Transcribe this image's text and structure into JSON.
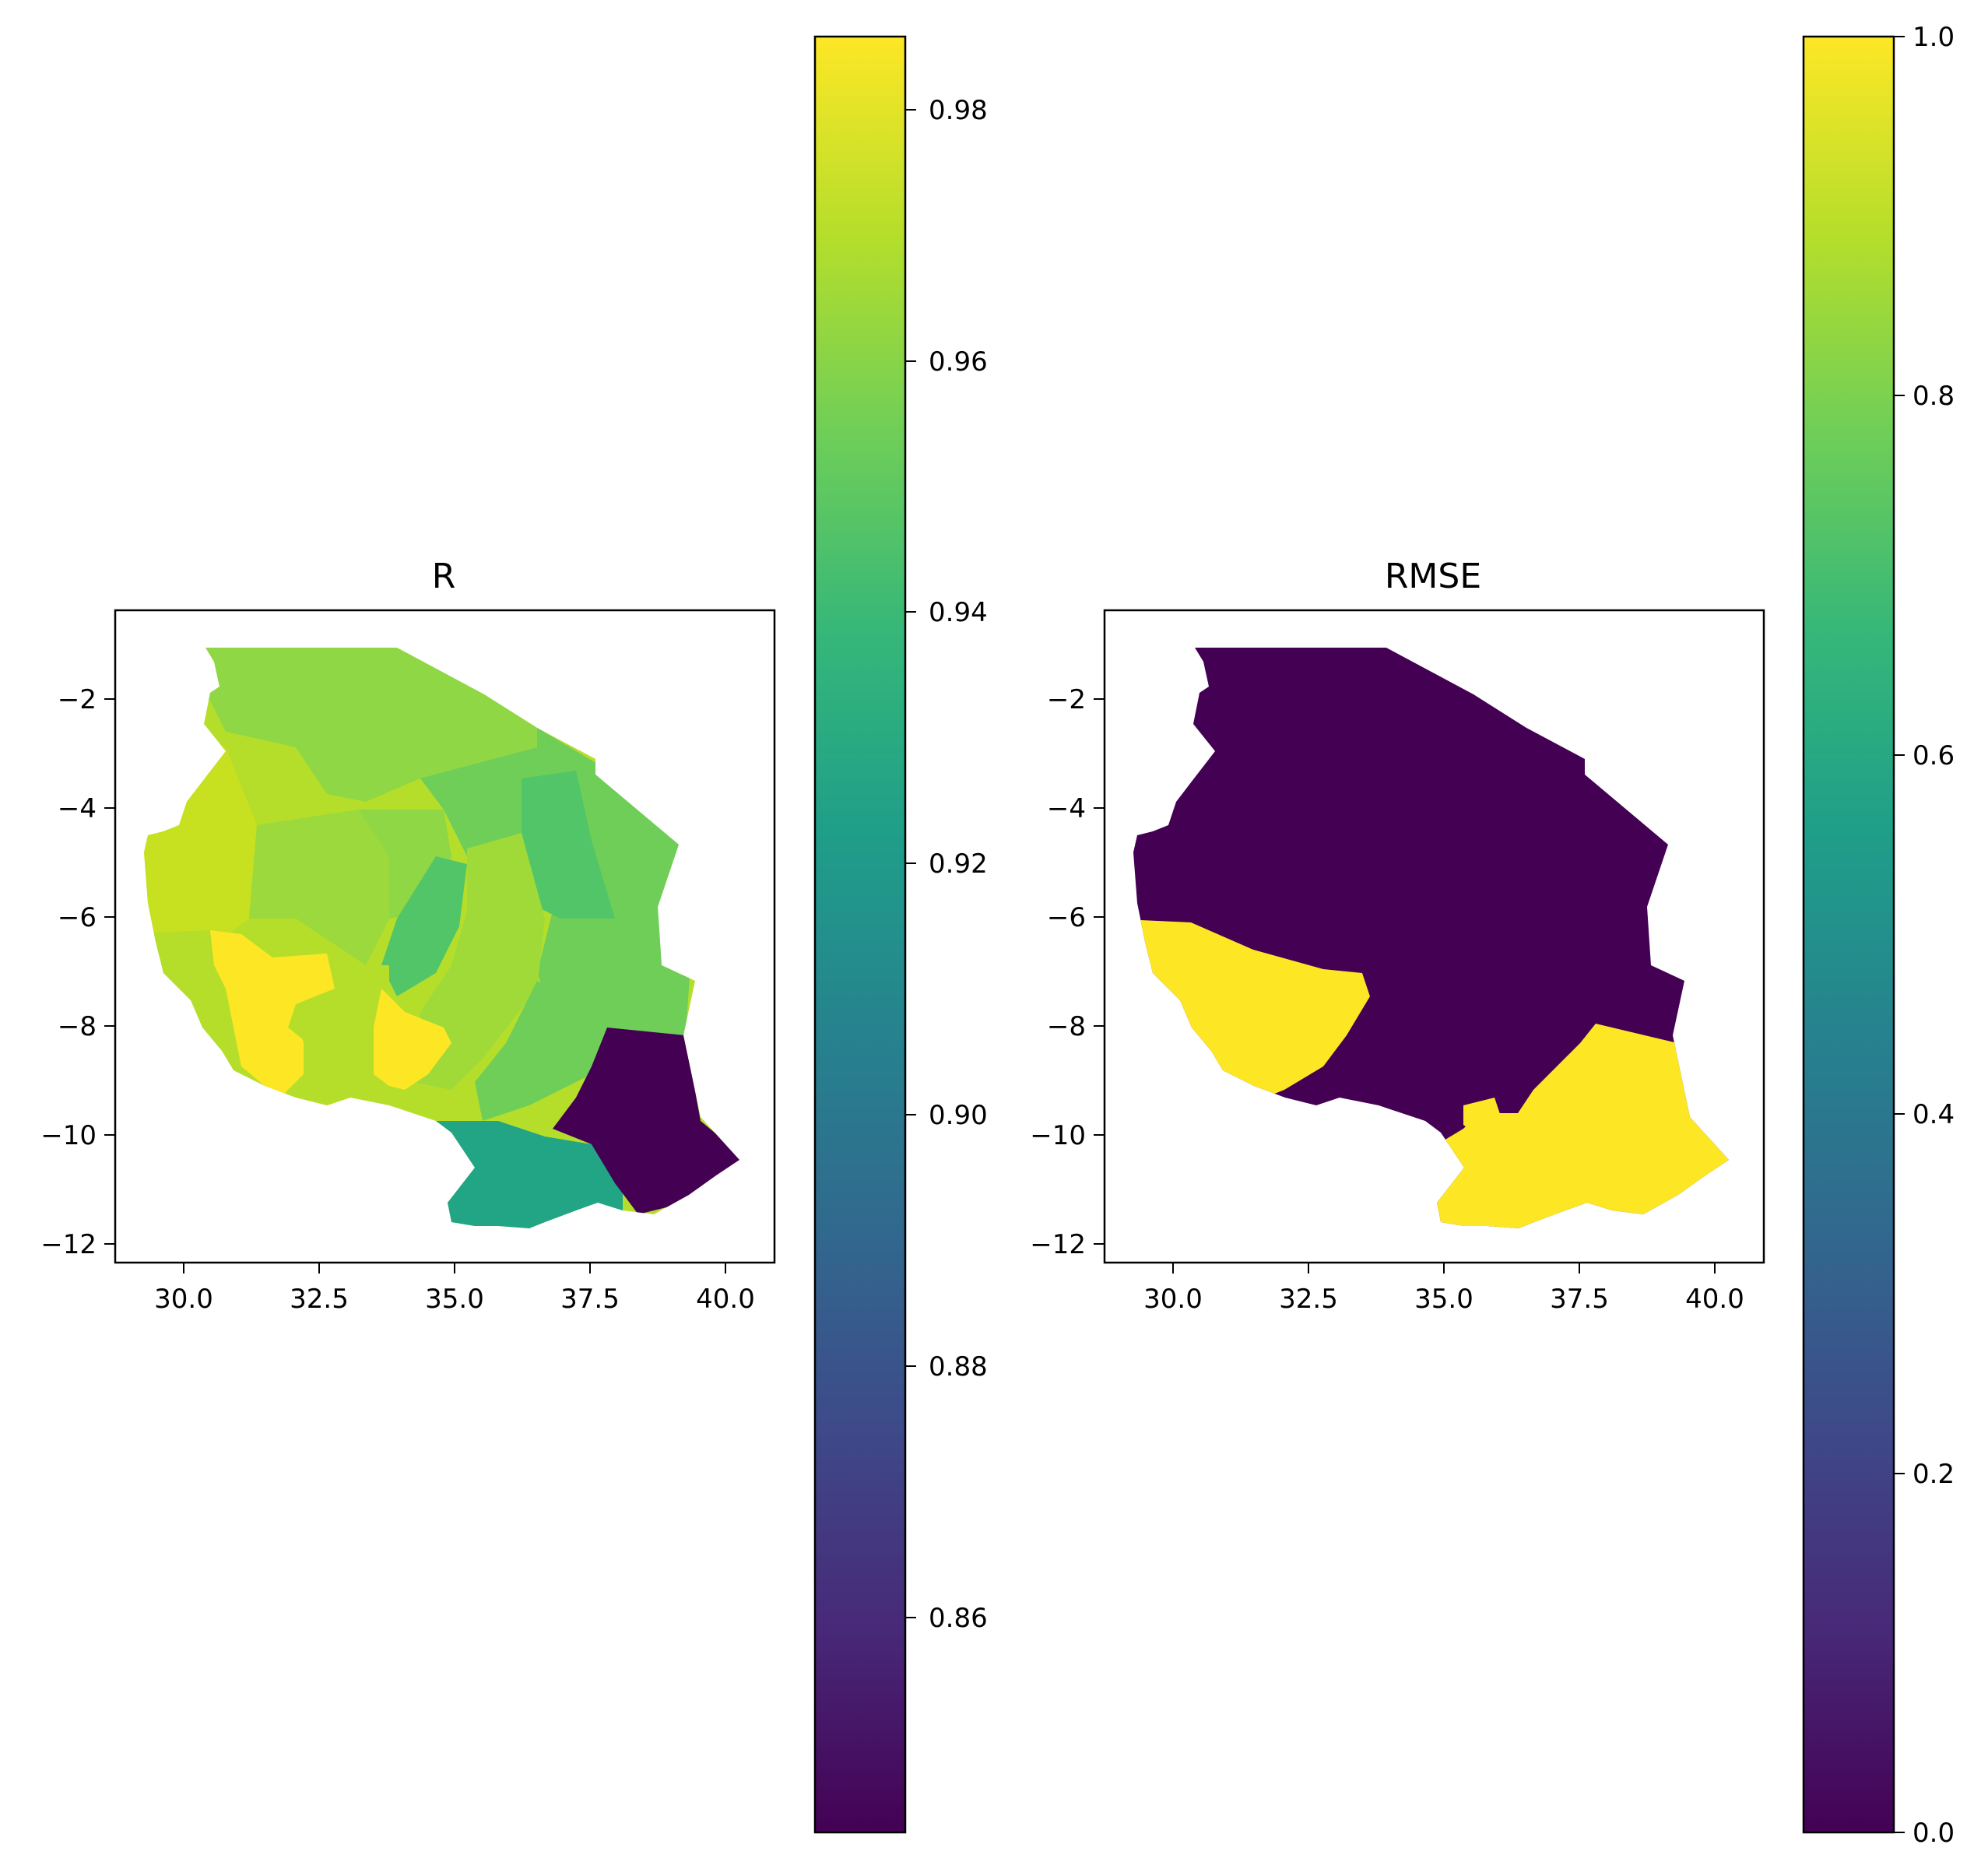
{
  "figure": {
    "panels": [
      {
        "title": "R",
        "x_ticks": [
          "30.0",
          "32.5",
          "35.0",
          "37.5",
          "40.0"
        ],
        "y_ticks": [
          "−2",
          "−4",
          "−6",
          "−8",
          "−10",
          "−12"
        ],
        "colorbar": {
          "colormap": "viridis",
          "ticks": [
            "0.98",
            "0.96",
            "0.94",
            "0.92",
            "0.90",
            "0.88",
            "0.86"
          ]
        }
      },
      {
        "title": "RMSE",
        "x_ticks": [
          "30.0",
          "32.5",
          "35.0",
          "37.5",
          "40.0"
        ],
        "y_ticks": [
          "−2",
          "−4",
          "−6",
          "−8",
          "−10",
          "−12"
        ],
        "colorbar": {
          "colormap": "viridis",
          "ticks": [
            "1.0",
            "0.8",
            "0.6",
            "0.4",
            "0.2",
            "0.0"
          ]
        }
      }
    ]
  },
  "colors": {
    "viridis": [
      "#440154",
      "#482878",
      "#3e4989",
      "#31688e",
      "#26828e",
      "#1f9e89",
      "#35b779",
      "#6ece58",
      "#b5de2b",
      "#fde725"
    ]
  }
}
